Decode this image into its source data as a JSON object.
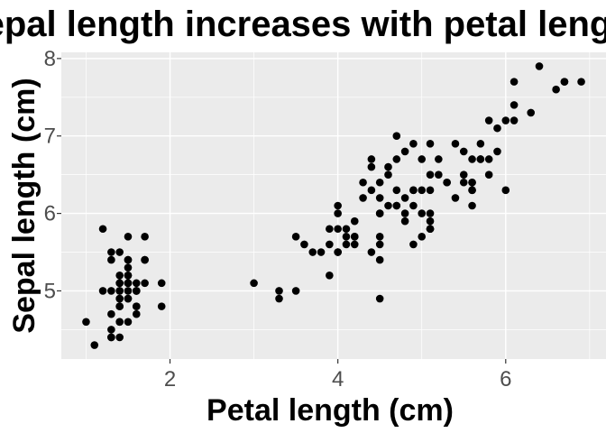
{
  "chart_data": {
    "type": "scatter",
    "title": "Sepal length increases with petal length",
    "xlabel": "Petal length (cm)",
    "ylabel": "Sepal length (cm)",
    "xlim": [
      0.705,
      7.195
    ],
    "ylim": [
      4.12,
      8.08
    ],
    "x_ticks": [
      2,
      4,
      6
    ],
    "y_ticks": [
      5,
      6,
      7,
      8
    ],
    "x_tick_labels": [
      "2",
      "4",
      "6"
    ],
    "y_tick_labels": [
      "5",
      "6",
      "7",
      "8"
    ],
    "grid": true,
    "legend": "none",
    "colors": {
      "panel": "#EBEBEB",
      "grid": "#FFFFFF",
      "point": "#000000",
      "tick_text": "#4D4D4D"
    },
    "points": [
      [
        1.4,
        5.1
      ],
      [
        1.4,
        4.9
      ],
      [
        1.3,
        4.7
      ],
      [
        1.5,
        4.6
      ],
      [
        1.4,
        5.0
      ],
      [
        1.7,
        5.4
      ],
      [
        1.4,
        4.6
      ],
      [
        1.5,
        5.0
      ],
      [
        1.4,
        4.4
      ],
      [
        1.5,
        4.9
      ],
      [
        1.5,
        5.4
      ],
      [
        1.6,
        4.8
      ],
      [
        1.4,
        4.8
      ],
      [
        1.1,
        4.3
      ],
      [
        1.2,
        5.8
      ],
      [
        1.5,
        5.7
      ],
      [
        1.3,
        5.4
      ],
      [
        1.4,
        5.1
      ],
      [
        1.7,
        5.7
      ],
      [
        1.5,
        5.1
      ],
      [
        1.7,
        5.4
      ],
      [
        1.5,
        5.1
      ],
      [
        1.0,
        4.6
      ],
      [
        1.7,
        5.1
      ],
      [
        1.9,
        4.8
      ],
      [
        1.6,
        5.0
      ],
      [
        1.6,
        5.0
      ],
      [
        1.5,
        5.2
      ],
      [
        1.4,
        5.2
      ],
      [
        1.6,
        4.7
      ],
      [
        1.6,
        4.8
      ],
      [
        1.5,
        5.4
      ],
      [
        1.5,
        5.2
      ],
      [
        1.4,
        5.5
      ],
      [
        1.5,
        4.9
      ],
      [
        1.2,
        5.0
      ],
      [
        1.3,
        5.5
      ],
      [
        1.4,
        4.9
      ],
      [
        1.3,
        4.4
      ],
      [
        1.5,
        5.1
      ],
      [
        1.3,
        5.0
      ],
      [
        1.3,
        4.5
      ],
      [
        1.3,
        4.4
      ],
      [
        1.6,
        5.0
      ],
      [
        1.9,
        5.1
      ],
      [
        1.4,
        4.8
      ],
      [
        1.6,
        5.1
      ],
      [
        1.4,
        4.6
      ],
      [
        1.5,
        5.3
      ],
      [
        1.4,
        5.0
      ],
      [
        4.7,
        7.0
      ],
      [
        4.5,
        6.4
      ],
      [
        4.9,
        6.9
      ],
      [
        4.0,
        5.5
      ],
      [
        4.6,
        6.5
      ],
      [
        4.5,
        5.7
      ],
      [
        4.7,
        6.3
      ],
      [
        3.3,
        4.9
      ],
      [
        4.6,
        6.6
      ],
      [
        3.9,
        5.2
      ],
      [
        3.5,
        5.0
      ],
      [
        4.2,
        5.9
      ],
      [
        4.0,
        6.0
      ],
      [
        4.7,
        6.1
      ],
      [
        3.6,
        5.6
      ],
      [
        4.4,
        6.7
      ],
      [
        4.5,
        5.6
      ],
      [
        4.1,
        5.8
      ],
      [
        4.5,
        6.2
      ],
      [
        3.9,
        5.6
      ],
      [
        4.8,
        5.9
      ],
      [
        4.0,
        6.1
      ],
      [
        4.9,
        6.3
      ],
      [
        4.7,
        6.1
      ],
      [
        4.3,
        6.4
      ],
      [
        4.4,
        6.6
      ],
      [
        4.8,
        6.8
      ],
      [
        5.0,
        6.7
      ],
      [
        4.5,
        6.0
      ],
      [
        3.5,
        5.7
      ],
      [
        3.8,
        5.5
      ],
      [
        3.7,
        5.5
      ],
      [
        3.9,
        5.8
      ],
      [
        5.1,
        6.0
      ],
      [
        4.5,
        5.4
      ],
      [
        4.5,
        6.0
      ],
      [
        4.7,
        6.7
      ],
      [
        4.4,
        6.3
      ],
      [
        4.1,
        5.6
      ],
      [
        4.0,
        5.5
      ],
      [
        4.4,
        5.5
      ],
      [
        4.6,
        6.1
      ],
      [
        4.0,
        5.8
      ],
      [
        3.3,
        5.0
      ],
      [
        4.2,
        5.6
      ],
      [
        4.2,
        5.7
      ],
      [
        4.2,
        5.7
      ],
      [
        4.3,
        6.2
      ],
      [
        3.0,
        5.1
      ],
      [
        4.1,
        5.7
      ],
      [
        6.0,
        6.3
      ],
      [
        5.1,
        5.8
      ],
      [
        5.9,
        7.1
      ],
      [
        5.6,
        6.3
      ],
      [
        5.8,
        6.5
      ],
      [
        6.6,
        7.6
      ],
      [
        4.5,
        4.9
      ],
      [
        6.3,
        7.3
      ],
      [
        5.8,
        6.7
      ],
      [
        6.1,
        7.2
      ],
      [
        5.1,
        6.5
      ],
      [
        5.3,
        6.4
      ],
      [
        5.5,
        6.8
      ],
      [
        5.0,
        5.7
      ],
      [
        5.1,
        5.8
      ],
      [
        5.3,
        6.4
      ],
      [
        5.5,
        6.5
      ],
      [
        6.7,
        7.7
      ],
      [
        6.9,
        7.7
      ],
      [
        5.0,
        6.0
      ],
      [
        5.7,
        6.9
      ],
      [
        4.9,
        5.6
      ],
      [
        6.7,
        7.7
      ],
      [
        4.9,
        6.3
      ],
      [
        5.7,
        6.7
      ],
      [
        6.0,
        7.2
      ],
      [
        4.8,
        6.2
      ],
      [
        4.9,
        6.1
      ],
      [
        5.6,
        6.4
      ],
      [
        5.8,
        7.2
      ],
      [
        6.1,
        7.4
      ],
      [
        6.4,
        7.9
      ],
      [
        5.6,
        6.4
      ],
      [
        5.1,
        6.3
      ],
      [
        5.6,
        6.1
      ],
      [
        6.1,
        7.7
      ],
      [
        5.6,
        6.3
      ],
      [
        5.5,
        6.4
      ],
      [
        4.8,
        6.0
      ],
      [
        5.4,
        6.9
      ],
      [
        5.6,
        6.7
      ],
      [
        5.1,
        6.9
      ],
      [
        5.1,
        5.8
      ],
      [
        5.9,
        6.8
      ],
      [
        5.7,
        6.7
      ],
      [
        5.2,
        6.7
      ],
      [
        5.0,
        6.3
      ],
      [
        5.2,
        6.5
      ],
      [
        5.4,
        6.2
      ],
      [
        5.1,
        5.9
      ]
    ]
  }
}
